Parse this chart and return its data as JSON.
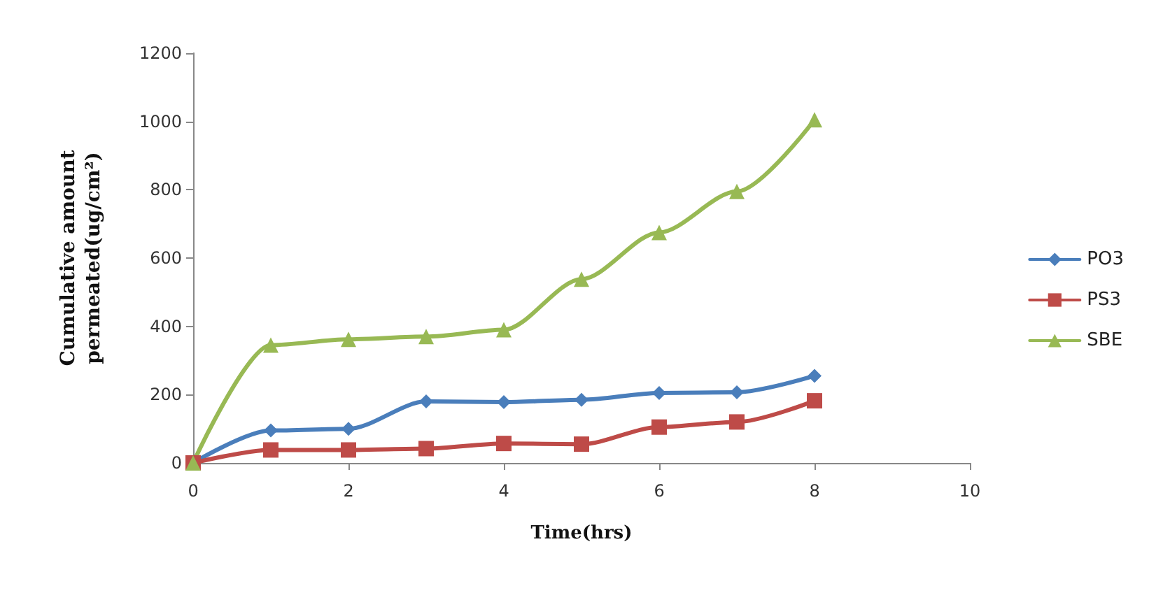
{
  "chart_data": {
    "type": "line",
    "xlabel": "Time(hrs)",
    "ylabel": "Cumulative amount\npermeated(ug/cm²)",
    "x": [
      0,
      1,
      2,
      3,
      4,
      5,
      6,
      7,
      8
    ],
    "series": [
      {
        "name": "PO3",
        "color": "#4a7ebb",
        "marker": "diamond",
        "values": [
          0,
          95,
          100,
          180,
          178,
          185,
          205,
          207,
          255
        ]
      },
      {
        "name": "PS3",
        "color": "#be4b48",
        "marker": "square",
        "values": [
          0,
          38,
          38,
          42,
          57,
          55,
          105,
          120,
          182
        ]
      },
      {
        "name": "SBE",
        "color": "#98b954",
        "marker": "triangle",
        "values": [
          0,
          345,
          362,
          370,
          390,
          538,
          675,
          795,
          1005
        ]
      }
    ],
    "xlim": [
      0,
      10
    ],
    "xticks": [
      0,
      2,
      4,
      6,
      8,
      10
    ],
    "ylim": [
      0,
      1200
    ],
    "yticks": [
      0,
      200,
      400,
      600,
      800,
      1000,
      1200
    ],
    "grid": false,
    "legend": "right",
    "line_style": "solid"
  }
}
